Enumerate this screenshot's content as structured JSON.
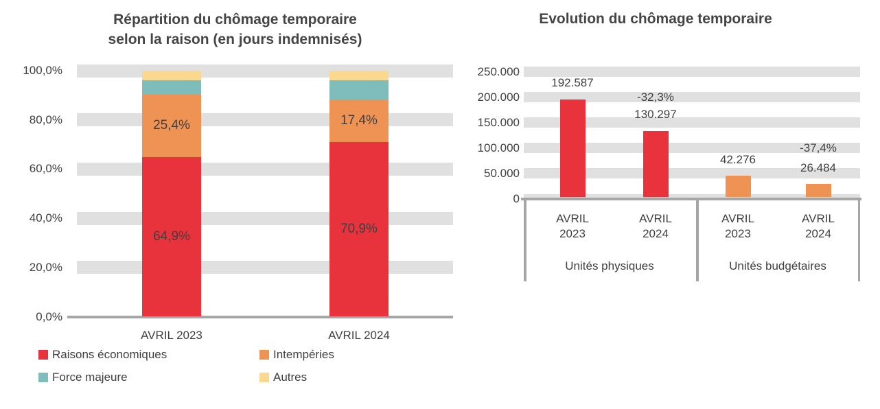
{
  "colors": {
    "red": "#e8323c",
    "orange": "#ef9355",
    "teal": "#7fbdbc",
    "yellow": "#fbd88f",
    "grid_band": "#e0e0e0",
    "axis": "#a6a6a6",
    "text": "#3f3f3f",
    "title": "#454545"
  },
  "chart_data": [
    {
      "type": "bar",
      "subtype": "stacked-100-percent",
      "title": "Répartition du chômage temporaire selon la raison (en jours indemnisés)",
      "title_lines": [
        "Répartition du chômage temporaire",
        "selon la raison (en jours indemnisés)"
      ],
      "categories": [
        "AVRIL 2023",
        "AVRIL 2024"
      ],
      "series": [
        {
          "name": "Raisons économiques",
          "color": "#e8323c",
          "values": [
            64.9,
            70.9
          ],
          "labels": [
            "64,9%",
            "70,9%"
          ]
        },
        {
          "name": "Intempéries",
          "color": "#ef9355",
          "values": [
            25.4,
            17.4
          ],
          "labels": [
            "25,4%",
            "17,4%"
          ]
        },
        {
          "name": "Force majeure",
          "color": "#7fbdbc",
          "values": [
            5.9,
            7.8
          ],
          "labels": [
            null,
            null
          ]
        },
        {
          "name": "Autres",
          "color": "#fbd88f",
          "values": [
            3.8,
            3.9
          ],
          "labels": [
            null,
            null
          ]
        }
      ],
      "y_axis": {
        "min": 0,
        "max": 100,
        "tick_values": [
          0,
          20,
          40,
          60,
          80,
          100
        ],
        "tick_labels": [
          "0,0%",
          "20,0%",
          "40,0%",
          "60,0%",
          "80,0%",
          "100,0%"
        ]
      },
      "grid": "horizontal-bands",
      "legend_position": "bottom"
    },
    {
      "type": "bar",
      "subtype": "grouped",
      "title": "Evolution du chômage temporaire",
      "groups": [
        {
          "label": "Unités physiques",
          "categories": [
            "AVRIL 2023",
            "AVRIL 2024"
          ],
          "values": [
            192587,
            130297
          ],
          "value_labels": [
            "192.587",
            "130.297"
          ],
          "delta_label": "-32,3%",
          "color": "#e8323c"
        },
        {
          "label": "Unités budgétaires",
          "categories": [
            "AVRIL 2023",
            "AVRIL 2024"
          ],
          "values": [
            42276,
            26484
          ],
          "value_labels": [
            "42.276",
            "26.484"
          ],
          "delta_label": "-37,4%",
          "color": "#ef9355"
        }
      ],
      "y_axis": {
        "min": 0,
        "max": 250000,
        "tick_values": [
          0,
          50000,
          100000,
          150000,
          200000,
          250000
        ],
        "tick_labels": [
          "0",
          "50.000",
          "100.000",
          "150.000",
          "200.000",
          "250.000"
        ]
      },
      "grid": "horizontal-bands",
      "legend_position": "none"
    }
  ]
}
